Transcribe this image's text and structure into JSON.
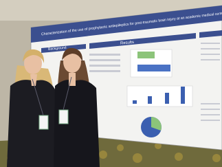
{
  "poster": {
    "title": "Characterization of the use of prophylactic antiepileptics for post-traumatic brain injury at an academic medical center",
    "sections": [
      "Background",
      "Results"
    ]
  }
}
